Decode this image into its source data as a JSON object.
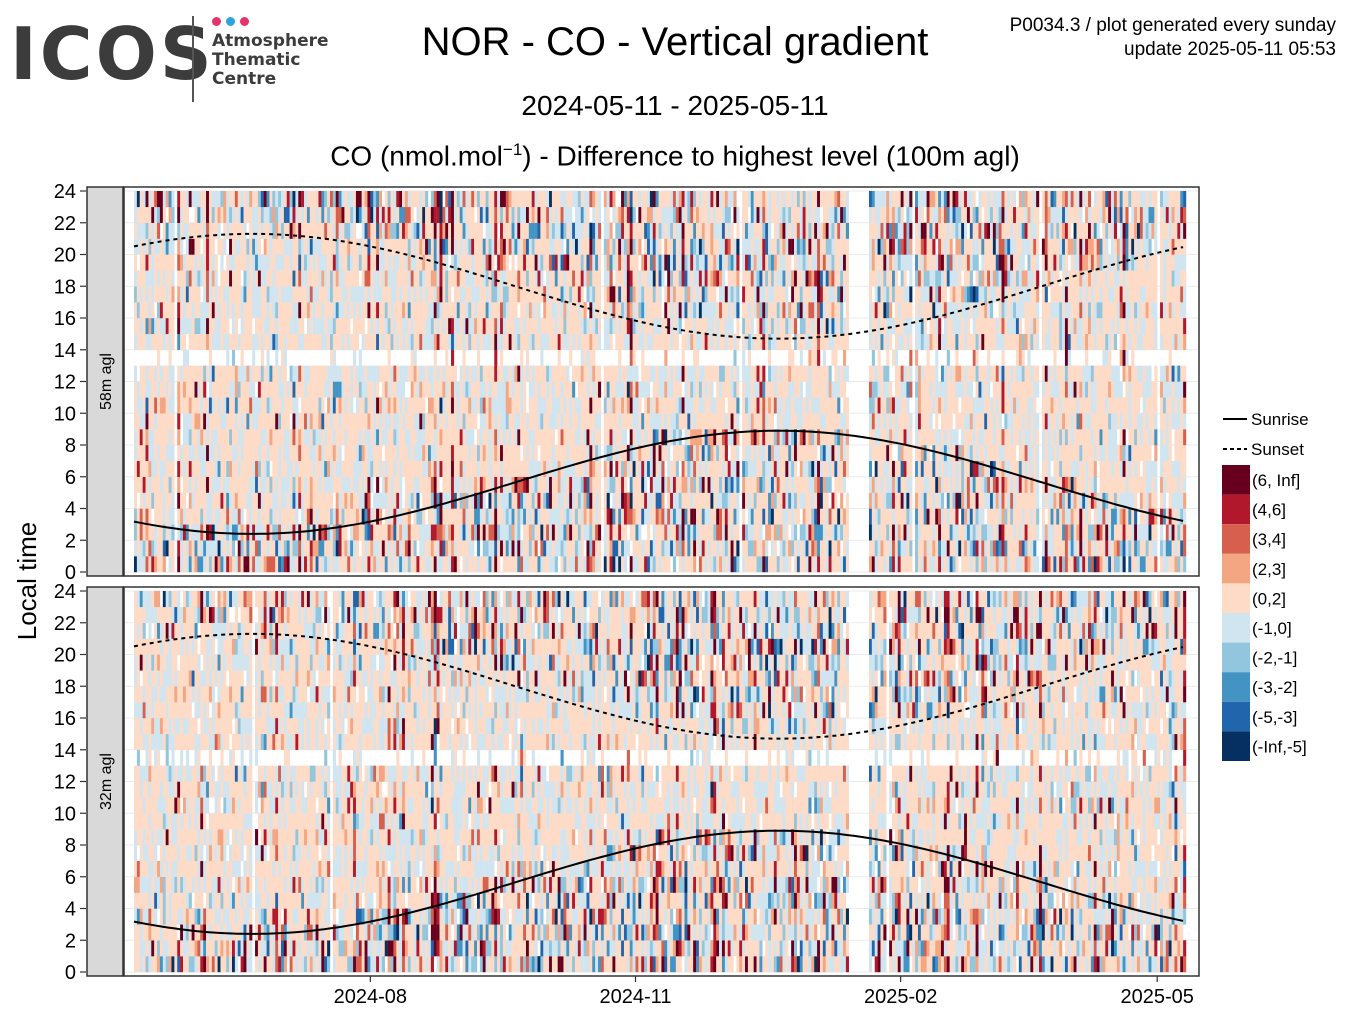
{
  "logo": {
    "wordmark": "ICOS",
    "sub_lines": [
      "Atmosphere",
      "Thematic",
      "Centre"
    ],
    "dot_colors": [
      "#e6336c",
      "#2aa3e0",
      "#e6336c"
    ]
  },
  "header": {
    "title": "NOR - CO - Vertical gradient",
    "product_line": "P0034.3 / plot generated every sunday",
    "update_line": "update  2025-05-11 05:53",
    "date_range": "2024-05-11 - 2025-05-11"
  },
  "chart_data": {
    "type": "heatmap",
    "title_main": "CO (nmol.mol",
    "title_sup": "−1",
    "title_rest": ") - Difference to highest level (100m agl)",
    "ylabel": "Local time",
    "x_range": [
      "2024-05-11",
      "2025-05-11"
    ],
    "x_ticks": [
      "2024-08",
      "2024-11",
      "2025-02",
      "2025-05"
    ],
    "y_range": [
      0,
      24
    ],
    "y_ticks": [
      0,
      2,
      4,
      6,
      8,
      10,
      12,
      14,
      16,
      18,
      20,
      22,
      24
    ],
    "panels": [
      {
        "label": "58m agl"
      },
      {
        "label": "32m agl"
      }
    ],
    "legend": {
      "lines": [
        {
          "label": "Sunrise",
          "style": "solid"
        },
        {
          "label": "Sunset",
          "style": "dashed"
        }
      ],
      "bins": [
        {
          "label": "(6, Inf]",
          "color": "#67001f"
        },
        {
          "label": "(4,6]",
          "color": "#b2182b"
        },
        {
          "label": "(3,4]",
          "color": "#d6604d"
        },
        {
          "label": "(2,3]",
          "color": "#f4a582"
        },
        {
          "label": "(0,2]",
          "color": "#fddbc7"
        },
        {
          "label": "(-1,0]",
          "color": "#d1e5f0"
        },
        {
          "label": "(-2,-1]",
          "color": "#92c5de"
        },
        {
          "label": "(-3,-2]",
          "color": "#4393c3"
        },
        {
          "label": "(-5,-3]",
          "color": "#2166ac"
        },
        {
          "label": "(-Inf,-5]",
          "color": "#053061"
        }
      ]
    },
    "sunrise": {
      "min": 2.4,
      "min_date": "2024-06-21",
      "max": 8.9,
      "max_date": "2024-12-21"
    },
    "sunset": {
      "max": 21.3,
      "max_date": "2024-06-21",
      "min": 14.7,
      "min_date": "2024-12-21"
    },
    "data_gap": {
      "start": "2025-01-14",
      "end": "2025-01-20"
    }
  }
}
